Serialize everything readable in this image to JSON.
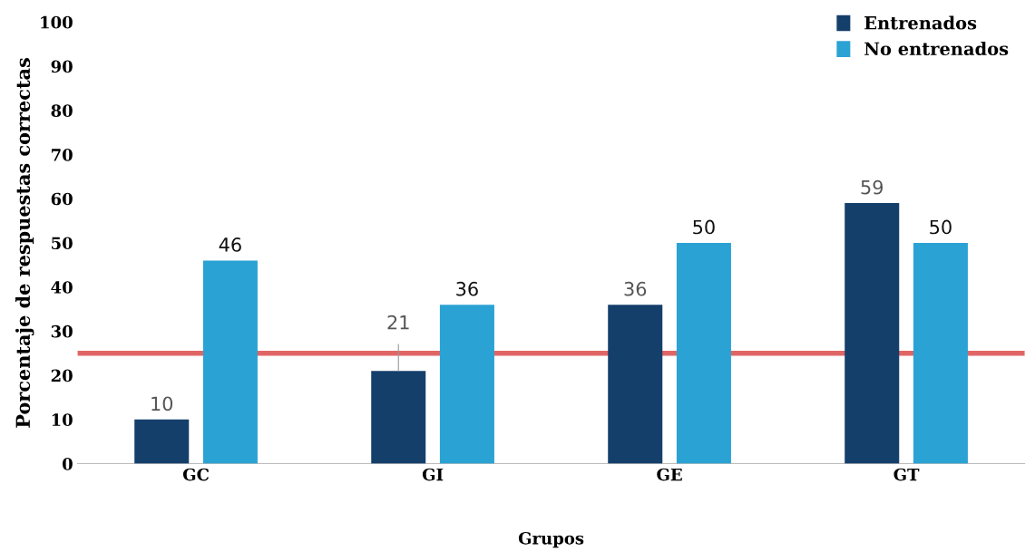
{
  "chart_data": {
    "type": "bar",
    "xlabel": "Grupos",
    "ylabel": "Porcentaje de respuestas correctas",
    "categories": [
      "GC",
      "GI",
      "GE",
      "GT"
    ],
    "series": [
      {
        "name": "Entrenados",
        "color": "#143f6b",
        "values": [
          10,
          21,
          36,
          59
        ]
      },
      {
        "name": "No entrenados",
        "color": "#2ba2d4",
        "values": [
          46,
          36,
          50,
          50
        ]
      }
    ],
    "ylim": [
      0,
      100
    ],
    "yticks": [
      0,
      10,
      20,
      30,
      40,
      50,
      60,
      70,
      80,
      90,
      100
    ],
    "ref_lines": [
      {
        "axis": "y",
        "value": 25,
        "color": "#e06666",
        "line_style": "solid"
      }
    ],
    "data_labels": true,
    "grid": false,
    "legend": "top right"
  }
}
